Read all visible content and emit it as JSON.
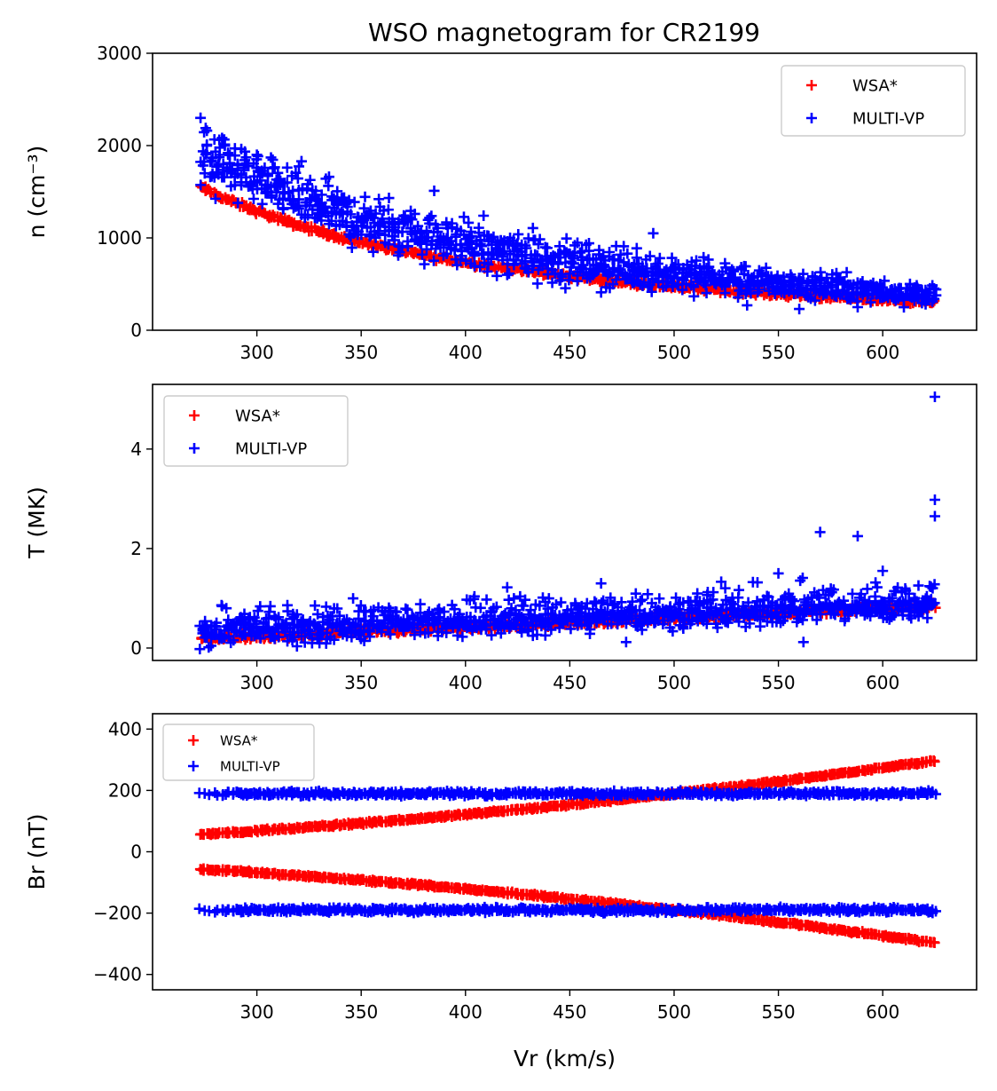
{
  "figure": {
    "title": "WSO magnetogram for CR2199",
    "colors": {
      "wsa": "#ff0000",
      "multivp": "#0000ff"
    }
  },
  "chart_data": [
    {
      "type": "scatter",
      "title": "WSO magnetogram for CR2199",
      "xlabel": "Vr (km/s)",
      "ylabel": "n (cm⁻³)",
      "xlim": [
        250,
        645
      ],
      "ylim": [
        0,
        3000
      ],
      "xticks": [
        300,
        350,
        400,
        450,
        500,
        550,
        600
      ],
      "yticks": [
        0,
        1000,
        2000,
        3000
      ],
      "legend_position": "top-right",
      "series": [
        {
          "name": "WSA*",
          "color": "#ff0000",
          "model": "n = 1550 * (273 / Vr)^1.95",
          "vmin": 273,
          "vmax": 625,
          "scatter": 15
        },
        {
          "name": "MULTI-VP",
          "color": "#0000ff",
          "model": "n = 1950 * (273 / Vr)^1.93",
          "vmin": 273,
          "vmax": 625,
          "scatter": 120,
          "outliers": [
            [
              385,
              1510
            ],
            [
              330,
              1250
            ],
            [
              343,
              1120
            ],
            [
              465,
              410
            ],
            [
              420,
              600
            ],
            [
              535,
              270
            ],
            [
              560,
              230
            ],
            [
              588,
              250
            ],
            [
              273,
              2300
            ],
            [
              275,
              1700
            ],
            [
              490,
              1050
            ],
            [
              300,
              1900
            ]
          ]
        }
      ]
    },
    {
      "type": "scatter",
      "xlabel": "Vr (km/s)",
      "ylabel": "T (MK)",
      "xlim": [
        250,
        645
      ],
      "ylim": [
        -0.25,
        5.3
      ],
      "xticks": [
        300,
        350,
        400,
        450,
        500,
        550,
        600
      ],
      "yticks": [
        0,
        2,
        4
      ],
      "legend_position": "top-left",
      "series": [
        {
          "name": "WSA*",
          "color": "#ff0000",
          "model": "T = 0.18 + (Vr - 273) * 0.00188",
          "vmin": 273,
          "vmax": 625,
          "scatter": 0.03
        },
        {
          "name": "MULTI-VP",
          "color": "#0000ff",
          "model": "T = 0.45 + (Vr - 273) * 0.0015",
          "vmin": 273,
          "vmax": 625,
          "scatter": 0.2,
          "outliers": [
            [
              625,
              5.05
            ],
            [
              625,
              2.98
            ],
            [
              625,
              2.65
            ],
            [
              570,
              2.33
            ],
            [
              588,
              2.25
            ],
            [
              600,
              1.55
            ],
            [
              562,
              0.12
            ],
            [
              477,
              0.12
            ],
            [
              420,
              1.22
            ],
            [
              465,
              1.3
            ],
            [
              550,
              1.5
            ],
            [
              330,
              0.1
            ]
          ]
        }
      ]
    },
    {
      "type": "scatter",
      "xlabel": "Vr (km/s)",
      "ylabel": "Br (nT)",
      "xlim": [
        250,
        645
      ],
      "ylim": [
        -450,
        450
      ],
      "xticks": [
        300,
        350,
        400,
        450,
        500,
        550,
        600
      ],
      "yticks": [
        -400,
        -200,
        0,
        200,
        400
      ],
      "legend_position": "top-left",
      "series": [
        {
          "name": "WSA*",
          "color": "#ff0000",
          "model": "Br = ± Vr^2 * 0.00076",
          "vmin": 273,
          "vmax": 625,
          "scatter": 2
        },
        {
          "name": "MULTI-VP",
          "color": "#0000ff",
          "model": "Br = ± 190",
          "vmin": 273,
          "vmax": 625,
          "scatter": 4
        }
      ]
    }
  ]
}
